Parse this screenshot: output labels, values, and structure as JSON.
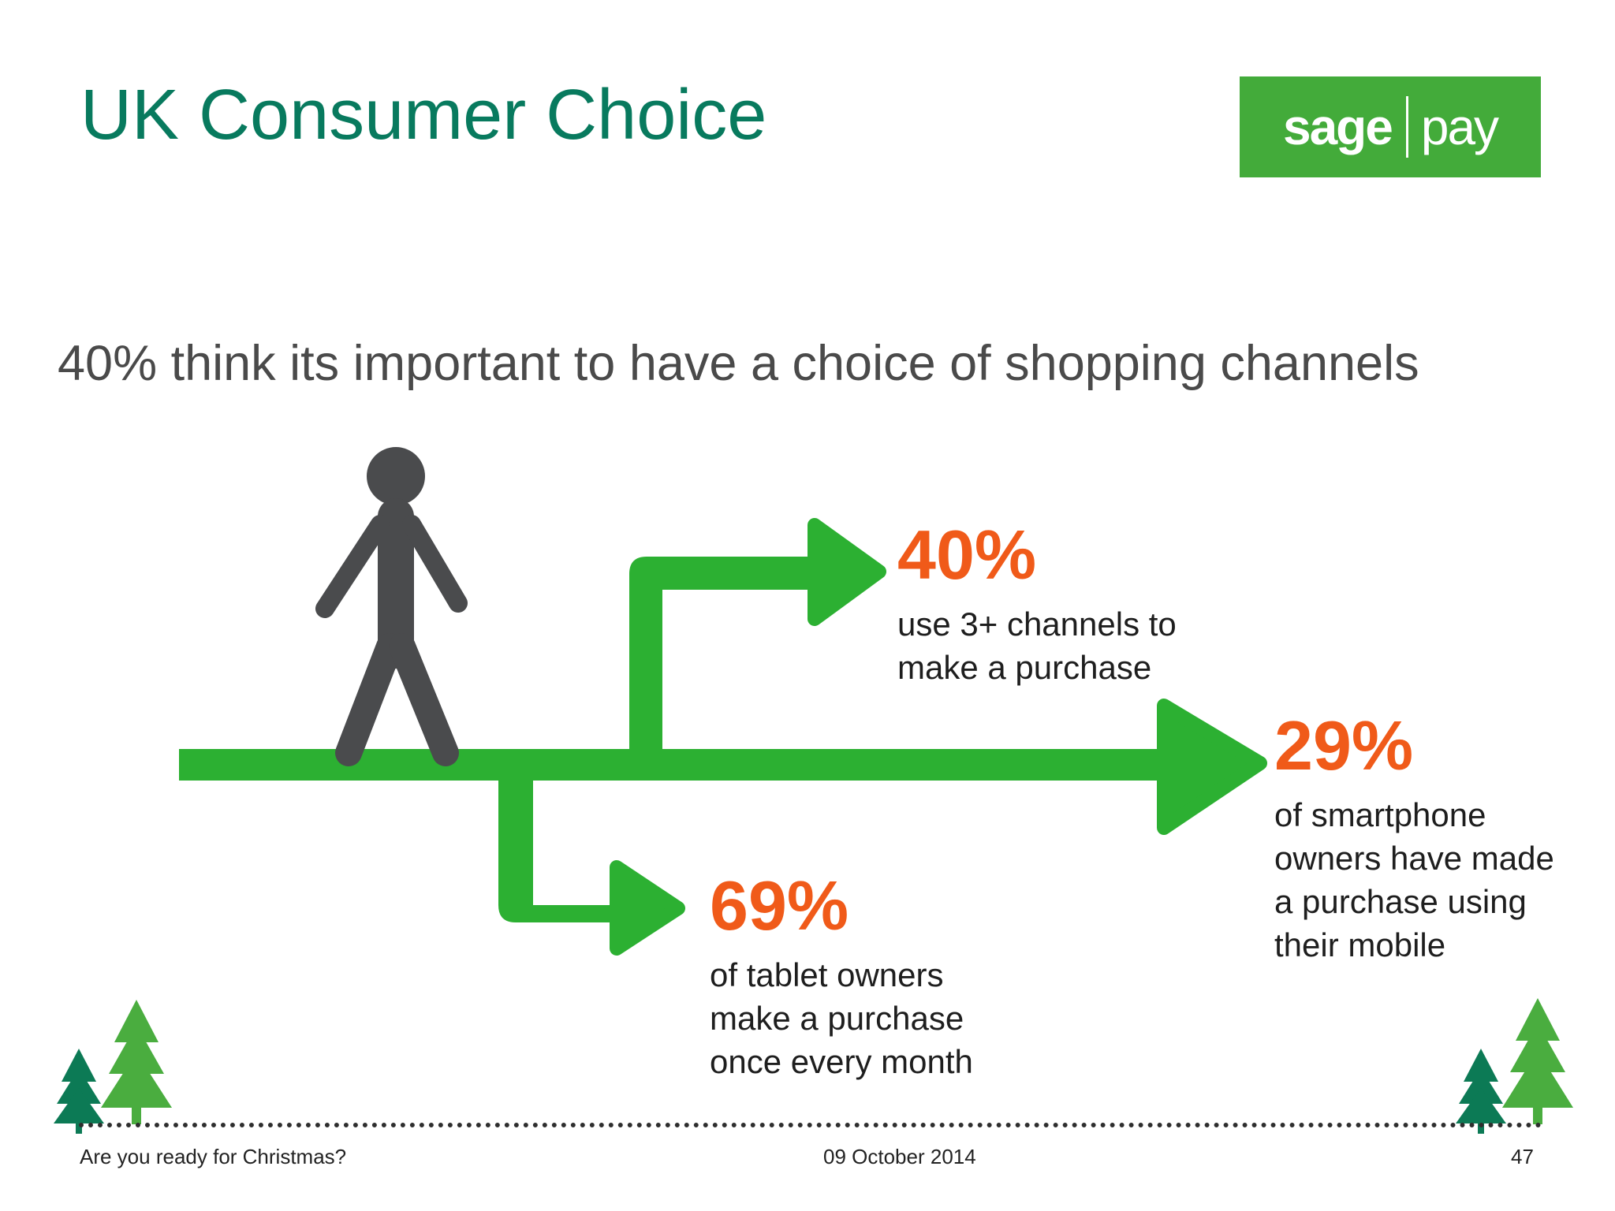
{
  "slide": {
    "title": "UK Consumer Choice",
    "subtitle": "40% think its important to have a choice of shopping channels"
  },
  "logo": {
    "left": "sage",
    "right": "pay"
  },
  "stats": [
    {
      "pct": "40%",
      "lines": [
        "use 3+ channels to",
        "make a purchase"
      ]
    },
    {
      "pct": "29%",
      "lines": [
        "of smartphone",
        "owners have made",
        "a purchase using",
        "their mobile"
      ]
    },
    {
      "pct": "69%",
      "lines": [
        "of tablet owners",
        "make a purchase",
        "once every month"
      ]
    }
  ],
  "footer": {
    "left": "Are you ready for Christmas?",
    "center": "09 October 2014",
    "right": "47"
  },
  "colors": {
    "title": "#087a5e",
    "logo_bg": "#43ab3a",
    "arrow": "#2cb032",
    "percent": "#f05a19",
    "person": "#4a4b4d",
    "tree_light": "#4aad3f",
    "tree_dark": "#0c7a55"
  },
  "icons": [
    "person-walking-icon",
    "christmas-tree-icon"
  ]
}
